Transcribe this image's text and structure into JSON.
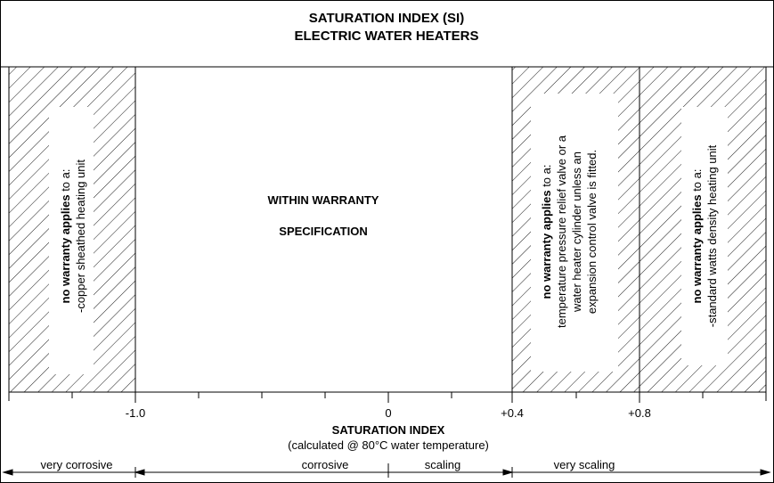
{
  "title": {
    "line1": "SATURATION INDEX (SI)",
    "line2": "ELECTRIC WATER HEATERS"
  },
  "zones": {
    "left": {
      "bold": "no warranty applies",
      "rest": " to a:",
      "line2": "-copper sheathed heating unit"
    },
    "center": {
      "line1": "WITHIN WARRANTY",
      "line2": "SPECIFICATION"
    },
    "mid_right": {
      "bold": "no warranty applies",
      "rest": " to a:",
      "line2": "temperature pressure relief valve or a",
      "line3": "water heater cylinder unless an",
      "line4": "expansion control valve is fitted."
    },
    "right": {
      "bold": "no warranty applies",
      "rest": " to a:",
      "line2": "-standard watts density heating unit"
    }
  },
  "axis": {
    "ticks": [
      "-1.0",
      "0",
      "+0.4",
      "+0.8"
    ],
    "label": "SATURATION INDEX",
    "sublabel": "(calculated @ 80°C water temperature)"
  },
  "ranges": {
    "very_corrosive": "very corrosive",
    "corrosive": "corrosive",
    "scaling": "scaling",
    "very_scaling": "very scaling"
  }
}
